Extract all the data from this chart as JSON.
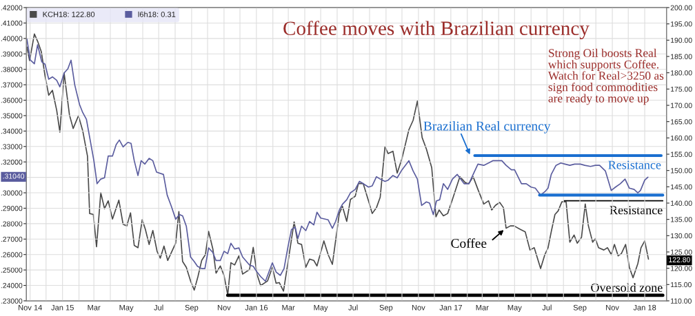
{
  "chart_data": {
    "type": "line",
    "title": "Coffee moves with Brazilian currency",
    "xlim": [
      "2014-10-25",
      "2018-02-11"
    ],
    "xticks": [
      {
        "value": "2014-11-01",
        "label": "Nov 14"
      },
      {
        "value": "2014-12-01",
        "label": null
      },
      {
        "value": "2015-01-01",
        "label": "Jan 15"
      },
      {
        "value": "2015-02-01",
        "label": null
      },
      {
        "value": "2015-03-01",
        "label": "Mar"
      },
      {
        "value": "2015-04-01",
        "label": null
      },
      {
        "value": "2015-05-01",
        "label": "May"
      },
      {
        "value": "2015-06-01",
        "label": null
      },
      {
        "value": "2015-07-01",
        "label": "Jul"
      },
      {
        "value": "2015-08-01",
        "label": null
      },
      {
        "value": "2015-09-01",
        "label": "Sep"
      },
      {
        "value": "2015-10-01",
        "label": null
      },
      {
        "value": "2015-11-01",
        "label": "Nov"
      },
      {
        "value": "2015-12-01",
        "label": null
      },
      {
        "value": "2016-01-01",
        "label": "Jan 16"
      },
      {
        "value": "2016-02-01",
        "label": null
      },
      {
        "value": "2016-03-01",
        "label": "Mar"
      },
      {
        "value": "2016-04-01",
        "label": null
      },
      {
        "value": "2016-05-01",
        "label": "May"
      },
      {
        "value": "2016-06-01",
        "label": null
      },
      {
        "value": "2016-07-01",
        "label": "Jul"
      },
      {
        "value": "2016-08-01",
        "label": null
      },
      {
        "value": "2016-09-01",
        "label": "Sep"
      },
      {
        "value": "2016-10-01",
        "label": null
      },
      {
        "value": "2016-11-01",
        "label": "Nov"
      },
      {
        "value": "2016-12-01",
        "label": null
      },
      {
        "value": "2017-01-01",
        "label": "Jan 17"
      },
      {
        "value": "2017-02-01",
        "label": null
      },
      {
        "value": "2017-03-01",
        "label": "Mar"
      },
      {
        "value": "2017-04-01",
        "label": null
      },
      {
        "value": "2017-05-01",
        "label": "May"
      },
      {
        "value": "2017-06-01",
        "label": null
      },
      {
        "value": "2017-07-01",
        "label": "Jul"
      },
      {
        "value": "2017-08-01",
        "label": null
      },
      {
        "value": "2017-09-01",
        "label": "Sep"
      },
      {
        "value": "2017-10-01",
        "label": null
      },
      {
        "value": "2017-11-01",
        "label": "Nov"
      },
      {
        "value": "2017-12-01",
        "label": null
      },
      {
        "value": "2018-01-01",
        "label": "Jan 18"
      }
    ],
    "ylim": [
      0.23,
      0.42
    ],
    "yticks": [
      {
        "value": 0.23,
        "label": ".23000"
      },
      {
        "value": 0.24,
        "label": ".24000"
      },
      {
        "value": 0.25,
        "label": ".25000"
      },
      {
        "value": 0.26,
        "label": ".26000"
      },
      {
        "value": 0.27,
        "label": ".27000"
      },
      {
        "value": 0.28,
        "label": ".28000"
      },
      {
        "value": 0.29,
        "label": ".29000"
      },
      {
        "value": 0.3,
        "label": ".30000"
      },
      {
        "value": 0.31,
        "label": null
      },
      {
        "value": 0.32,
        "label": ".32000"
      },
      {
        "value": 0.33,
        "label": ".33000"
      },
      {
        "value": 0.34,
        "label": ".34000"
      },
      {
        "value": 0.35,
        "label": ".35000"
      },
      {
        "value": 0.36,
        "label": ".36000"
      },
      {
        "value": 0.37,
        "label": ".37000"
      },
      {
        "value": 0.38,
        "label": ".38000"
      },
      {
        "value": 0.39,
        "label": ".39000"
      },
      {
        "value": 0.4,
        "label": ".40000"
      },
      {
        "value": 0.41,
        "label": ".41000"
      },
      {
        "value": 0.42,
        "label": ".42000"
      }
    ],
    "y2lim": [
      110,
      200
    ],
    "y2ticks": [
      {
        "value": 110,
        "label": "110.00"
      },
      {
        "value": 115,
        "label": "115.00"
      },
      {
        "value": 120,
        "label": "120.00"
      },
      {
        "value": 125,
        "label": "125.00"
      },
      {
        "value": 130,
        "label": "130.00"
      },
      {
        "value": 135,
        "label": "135.00"
      },
      {
        "value": 140,
        "label": "140.00"
      },
      {
        "value": 145,
        "label": "145.00"
      },
      {
        "value": 150,
        "label": "150.00"
      },
      {
        "value": 155,
        "label": "155.00"
      },
      {
        "value": 160,
        "label": "160.00"
      },
      {
        "value": 165,
        "label": "165.00"
      },
      {
        "value": 170,
        "label": "170.00"
      },
      {
        "value": 175,
        "label": "175.00"
      },
      {
        "value": 180,
        "label": "180.00"
      },
      {
        "value": 185,
        "label": "185.00"
      },
      {
        "value": 190,
        "label": "190.00"
      },
      {
        "value": 195,
        "label": "195.00"
      },
      {
        "value": 200,
        "label": "200.00"
      }
    ],
    "grid": true,
    "legend": "top left",
    "series": [
      {
        "name": "KCH18: 122.80",
        "color": "#4a4a4a",
        "axis": "y2",
        "x": [
          "2014-10-26",
          "2014-10-31",
          "2014-11-09",
          "2014-11-16",
          "2014-11-22",
          "2014-11-29",
          "2014-12-06",
          "2014-12-13",
          "2014-12-21",
          "2014-12-27",
          "2015-01-04",
          "2015-01-14",
          "2015-01-21",
          "2015-01-31",
          "2015-02-08",
          "2015-02-17",
          "2015-02-21",
          "2015-02-28",
          "2015-03-06",
          "2015-03-14",
          "2015-03-21",
          "2015-03-28",
          "2015-04-05",
          "2015-04-17",
          "2015-04-25",
          "2015-05-02",
          "2015-05-09",
          "2015-05-16",
          "2015-05-23",
          "2015-05-31",
          "2015-06-06",
          "2015-06-13",
          "2015-06-20",
          "2015-06-28",
          "2015-07-04",
          "2015-07-11",
          "2015-07-18",
          "2015-08-02",
          "2015-08-08",
          "2015-08-15",
          "2015-08-22",
          "2015-08-30",
          "2015-09-06",
          "2015-09-13",
          "2015-09-20",
          "2015-09-27",
          "2015-10-03",
          "2015-10-11",
          "2015-10-17",
          "2015-10-25",
          "2015-11-01",
          "2015-11-08",
          "2015-11-14",
          "2015-11-21",
          "2015-11-29",
          "2015-12-06",
          "2015-12-19",
          "2015-12-26",
          "2016-01-02",
          "2016-01-09",
          "2016-01-22",
          "2016-01-31",
          "2016-02-07",
          "2016-02-13",
          "2016-02-21",
          "2016-02-29",
          "2016-03-12",
          "2016-03-19",
          "2016-03-26",
          "2016-04-03",
          "2016-04-10",
          "2016-04-18",
          "2016-04-24",
          "2016-05-07",
          "2016-05-15",
          "2016-05-23",
          "2016-05-29",
          "2016-06-05",
          "2016-06-11",
          "2016-06-19",
          "2016-06-26",
          "2016-07-05",
          "2016-07-11",
          "2016-07-20",
          "2016-07-30",
          "2016-08-06",
          "2016-08-14",
          "2016-08-21",
          "2016-08-30",
          "2016-09-05",
          "2016-09-14",
          "2016-09-22",
          "2016-10-01",
          "2016-10-14",
          "2016-10-22",
          "2016-10-30",
          "2016-11-08",
          "2016-11-16",
          "2016-11-26",
          "2016-12-04",
          "2016-12-10",
          "2016-12-18",
          "2016-12-26",
          "2017-01-04",
          "2017-01-18",
          "2017-01-28",
          "2017-02-04",
          "2017-02-12",
          "2017-02-21",
          "2017-03-04",
          "2017-03-13",
          "2017-03-19",
          "2017-03-26",
          "2017-04-03",
          "2017-04-10",
          "2017-04-15",
          "2017-04-23",
          "2017-04-30",
          "2017-05-12",
          "2017-05-21",
          "2017-05-30",
          "2017-06-07",
          "2017-06-19",
          "2017-06-27",
          "2017-07-03",
          "2017-07-09",
          "2017-07-16",
          "2017-07-22",
          "2017-07-29",
          "2017-08-06",
          "2017-08-13",
          "2017-08-21",
          "2017-08-27",
          "2017-09-04",
          "2017-09-11",
          "2017-09-17",
          "2017-09-25",
          "2017-09-30",
          "2017-10-06",
          "2017-10-16",
          "2017-10-23",
          "2017-10-30",
          "2017-11-05",
          "2017-11-12",
          "2017-11-18",
          "2017-11-26",
          "2017-12-03",
          "2017-12-10",
          "2017-12-19",
          "2017-12-25",
          "2018-01-01",
          "2018-01-08"
        ],
        "values": [
          187.9,
          183.7,
          191.9,
          189.3,
          186.5,
          179.1,
          173.1,
          174.6,
          168.5,
          161.8,
          179.9,
          167.1,
          162.9,
          166.8,
          162.2,
          154.4,
          136.8,
          136.5,
          126.6,
          143.2,
          138.3,
          140.7,
          135.1,
          140.9,
          133.5,
          133.0,
          137.0,
          127.0,
          126.3,
          134.9,
          131.9,
          127.3,
          131.6,
          125.2,
          123.1,
          126.8,
          122.4,
          127.7,
          137.4,
          122.1,
          120.3,
          116.1,
          113.3,
          117.5,
          122.4,
          124.2,
          131.3,
          125.9,
          118.5,
          120.7,
          117.8,
          111.8,
          121.7,
          121.0,
          123.8,
          118.2,
          119.6,
          126.4,
          118.2,
          114.7,
          116.1,
          120.3,
          115.4,
          115.6,
          113.0,
          121.4,
          134.2,
          127.7,
          127.3,
          120.3,
          122.8,
          122.4,
          120.7,
          128.4,
          124.2,
          121.2,
          128.4,
          136.8,
          139.0,
          134.4,
          141.1,
          142.1,
          146.0,
          146.0,
          140.7,
          136.8,
          138.6,
          141.8,
          157.3,
          155.2,
          155.9,
          149.2,
          153.7,
          162.5,
          165.4,
          171.3,
          160.1,
          156.6,
          150.9,
          135.8,
          137.9,
          136.1,
          136.8,
          141.1,
          148.1,
          146.3,
          146.0,
          148.1,
          144.2,
          139.7,
          140.7,
          137.9,
          139.3,
          140.2,
          138.6,
          132.3,
          133.0,
          133.0,
          131.9,
          131.2,
          125.6,
          126.3,
          119.9,
          124.2,
          126.3,
          131.2,
          136.5,
          137.6,
          140.4,
          140.4,
          128.0,
          130.2,
          127.7,
          129.5,
          139.7,
          133.0,
          128.0,
          129.1,
          126.3,
          125.6,
          126.3,
          124.2,
          127.3,
          123.8,
          124.5,
          127.3,
          120.3,
          117.1,
          121.4,
          126.3,
          128.4,
          122.8
        ]
      },
      {
        "name": "l6h18: 0.31",
        "color": "#5a5c9e",
        "x": [
          "2014-10-26",
          "2014-11-01",
          "2014-11-09",
          "2014-11-15",
          "2014-11-23",
          "2014-11-29",
          "2014-12-06",
          "2014-12-13",
          "2014-12-21",
          "2014-12-27",
          "2015-01-04",
          "2015-01-11",
          "2015-01-17",
          "2015-01-24",
          "2015-02-02",
          "2015-02-08",
          "2015-02-15",
          "2015-02-22",
          "2015-03-01",
          "2015-03-07",
          "2015-03-14",
          "2015-03-21",
          "2015-03-28",
          "2015-04-05",
          "2015-04-12",
          "2015-04-18",
          "2015-04-25",
          "2015-05-04",
          "2015-05-10",
          "2015-05-16",
          "2015-05-23",
          "2015-05-29",
          "2015-06-05",
          "2015-06-13",
          "2015-06-20",
          "2015-06-27",
          "2015-07-10",
          "2015-07-17",
          "2015-07-25",
          "2015-08-02",
          "2015-08-09",
          "2015-08-15",
          "2015-08-22",
          "2015-08-30",
          "2015-09-06",
          "2015-09-12",
          "2015-09-20",
          "2015-09-26",
          "2015-10-03",
          "2015-10-11",
          "2015-10-17",
          "2015-10-25",
          "2015-11-01",
          "2015-11-08",
          "2015-11-14",
          "2015-11-21",
          "2015-11-29",
          "2015-12-06",
          "2015-12-19",
          "2015-12-26",
          "2016-01-02",
          "2016-01-09",
          "2016-01-18",
          "2016-01-31",
          "2016-02-07",
          "2016-02-15",
          "2016-02-22",
          "2016-02-29",
          "2016-03-07",
          "2016-03-14",
          "2016-03-19",
          "2016-03-26",
          "2016-04-03",
          "2016-04-10",
          "2016-04-18",
          "2016-04-24",
          "2016-05-01",
          "2016-05-15",
          "2016-05-23",
          "2016-05-29",
          "2016-06-05",
          "2016-06-11",
          "2016-06-19",
          "2016-06-26",
          "2016-07-05",
          "2016-07-13",
          "2016-07-20",
          "2016-07-30",
          "2016-08-06",
          "2016-08-14",
          "2016-08-21",
          "2016-08-30",
          "2016-09-05",
          "2016-09-14",
          "2016-09-22",
          "2016-10-01",
          "2016-10-14",
          "2016-10-22",
          "2016-10-30",
          "2016-11-07",
          "2016-11-16",
          "2016-11-22",
          "2016-11-29",
          "2016-12-05",
          "2016-12-11",
          "2016-12-18",
          "2016-12-26",
          "2017-01-04",
          "2017-01-13",
          "2017-01-26",
          "2017-02-04",
          "2017-02-12",
          "2017-02-21",
          "2017-03-04",
          "2017-03-13",
          "2017-03-21",
          "2017-03-30",
          "2017-04-07",
          "2017-04-15",
          "2017-04-25",
          "2017-05-01",
          "2017-05-14",
          "2017-05-23",
          "2017-06-01",
          "2017-06-09",
          "2017-06-19",
          "2017-06-27",
          "2017-07-03",
          "2017-07-09",
          "2017-07-18",
          "2017-07-27",
          "2017-08-04",
          "2017-08-13",
          "2017-08-22",
          "2017-09-02",
          "2017-09-10",
          "2017-09-21",
          "2017-09-30",
          "2017-10-08",
          "2017-10-19",
          "2017-10-30",
          "2017-11-07",
          "2017-11-16",
          "2017-11-25",
          "2017-12-03",
          "2017-12-12",
          "2017-12-19",
          "2017-12-24",
          "2018-01-01",
          "2018-01-07"
        ],
        "values": [
          0.3996,
          0.3862,
          0.3836,
          0.3959,
          0.3848,
          0.3833,
          0.3736,
          0.3751,
          0.3729,
          0.3687,
          0.3776,
          0.3803,
          0.3859,
          0.3699,
          0.3572,
          0.352,
          0.3476,
          0.3342,
          0.3208,
          0.3059,
          0.3089,
          0.3097,
          0.3238,
          0.3238,
          0.3312,
          0.3342,
          0.3297,
          0.3327,
          0.332,
          0.3208,
          0.3112,
          0.3208,
          0.3186,
          0.3223,
          0.3208,
          0.3134,
          0.3119,
          0.2985,
          0.2911,
          0.2829,
          0.2859,
          0.2851,
          0.2784,
          0.2584,
          0.2554,
          0.2524,
          0.2509,
          0.2509,
          0.2643,
          0.2613,
          0.2561,
          0.2561,
          0.2621,
          0.2606,
          0.2673,
          0.2636,
          0.2643,
          0.2584,
          0.2532,
          0.2524,
          0.2487,
          0.2457,
          0.2427,
          0.2546,
          0.2487,
          0.2465,
          0.2509,
          0.2643,
          0.2762,
          0.2777,
          0.2703,
          0.2784,
          0.2755,
          0.2814,
          0.2792,
          0.2874,
          0.2836,
          0.2825,
          0.277,
          0.2814,
          0.2888,
          0.2926,
          0.2955,
          0.3,
          0.3022,
          0.3074,
          0.3059,
          0.3037,
          0.3045,
          0.3104,
          0.3089,
          0.3074,
          0.3082,
          0.3112,
          0.3097,
          0.3149,
          0.3208,
          0.3141,
          0.3089,
          0.2918,
          0.2941,
          0.2933,
          0.2859,
          0.2948,
          0.2955,
          0.3059,
          0.3022,
          0.3089,
          0.3119,
          0.3059,
          0.3059,
          0.3119,
          0.3186,
          0.3178,
          0.3193,
          0.3208,
          0.3208,
          0.3208,
          0.3178,
          0.3149,
          0.3149,
          0.3059,
          0.3059,
          0.3037,
          0.303,
          0.2985,
          0.3007,
          0.303,
          0.3119,
          0.3178,
          0.3193,
          0.3186,
          0.3178,
          0.3186,
          0.3186,
          0.3178,
          0.3171,
          0.3178,
          0.3178,
          0.3141,
          0.3015,
          0.3037,
          0.3059,
          0.3089,
          0.303,
          0.3022,
          0.3,
          0.3015,
          0.3082,
          0.3101
        ]
      },
      {
        "name": "Resistance",
        "color": "#1a6fd0",
        "x": [
          "2017-02-15",
          "2018-02-01"
        ],
        "values": [
          0.3241,
          0.3241
        ]
      },
      {
        "color": "#1a6fd0",
        "x": [
          "2017-06-17",
          "2018-02-04"
        ],
        "values": [
          0.2985,
          0.2985
        ]
      },
      {
        "name": "Resistance",
        "color": "#000000",
        "axis": "y2",
        "x": [
          "2017-08-02",
          "2018-02-04"
        ],
        "values": [
          140.7,
          140.7
        ]
      },
      {
        "name": "Oversold zone",
        "color": "#000000",
        "axis": "y2",
        "x": [
          "2015-11-08",
          "2018-02-04"
        ],
        "values": [
          111.7,
          111.7
        ]
      }
    ],
    "annotations": [
      "Strong Oil boosts Real\nwhich supports Coffee.\nWatch for Real>3250 as\nsign food commodities\nare ready to move up",
      "Brazilian Real currency",
      "Coffee",
      ".31040",
      "122.80"
    ]
  }
}
